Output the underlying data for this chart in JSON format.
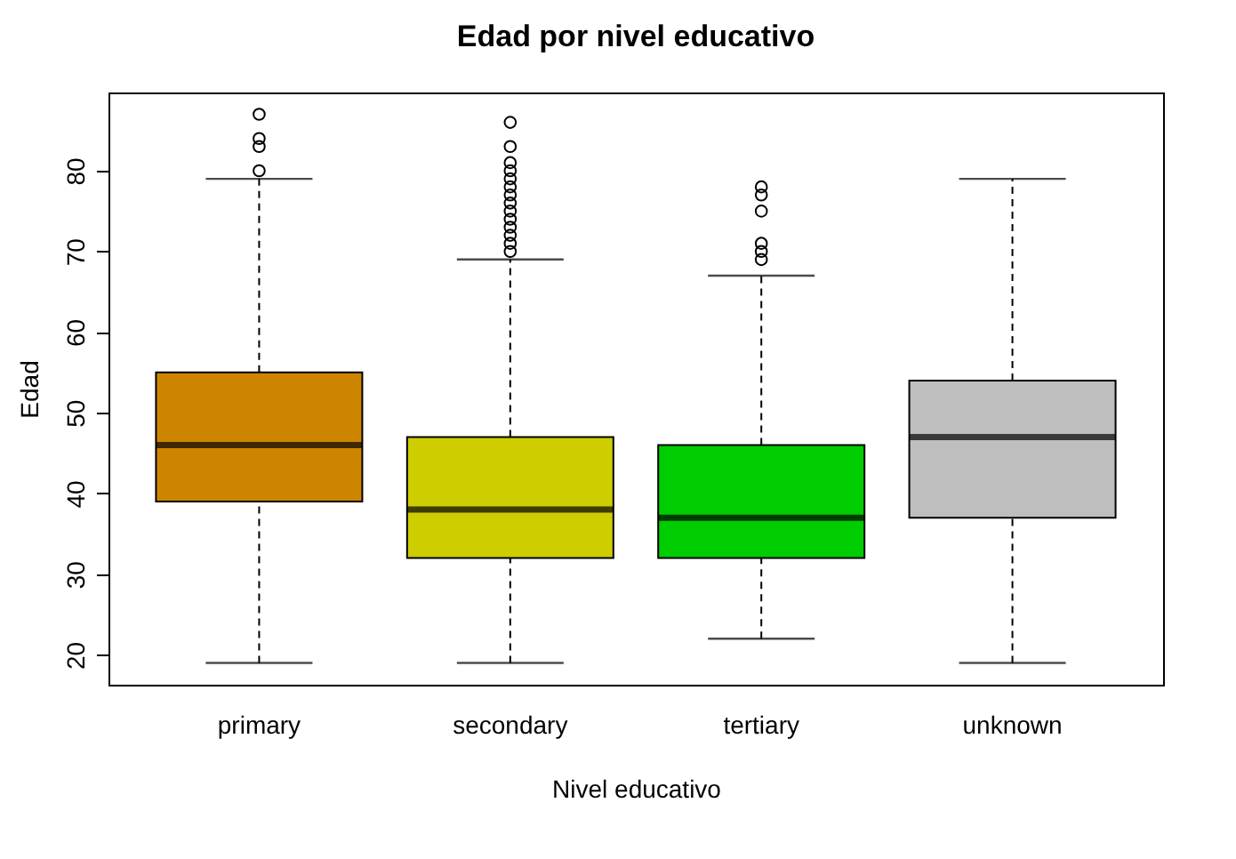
{
  "chart_data": {
    "type": "box",
    "title": "Edad por nivel educativo",
    "xlabel": "Nivel educativo",
    "ylabel": "Edad",
    "categories": [
      "primary",
      "secondary",
      "tertiary",
      "unknown"
    ],
    "colors": [
      "#cd8500",
      "#cdcd00",
      "#00cd00",
      "#bebebe"
    ],
    "boxes": [
      {
        "low": 19,
        "q1": 39,
        "median": 46,
        "q3": 55,
        "high": 79,
        "outliers": [
          80,
          83,
          84,
          87
        ]
      },
      {
        "low": 19,
        "q1": 32,
        "median": 38,
        "q3": 47,
        "high": 69,
        "outliers": [
          70,
          71,
          72,
          73,
          74,
          75,
          76,
          77,
          78,
          79,
          80,
          81,
          83,
          86
        ]
      },
      {
        "low": 22,
        "q1": 32,
        "median": 37,
        "q3": 46,
        "high": 67,
        "outliers": [
          69,
          70,
          71,
          75,
          77,
          78
        ]
      },
      {
        "low": 19,
        "q1": 37,
        "median": 47,
        "q3": 54,
        "high": 79
      }
    ],
    "ylim": [
      16.3,
      89.7
    ],
    "yticks": [
      20,
      30,
      40,
      50,
      60,
      70,
      80
    ],
    "grid": false
  }
}
